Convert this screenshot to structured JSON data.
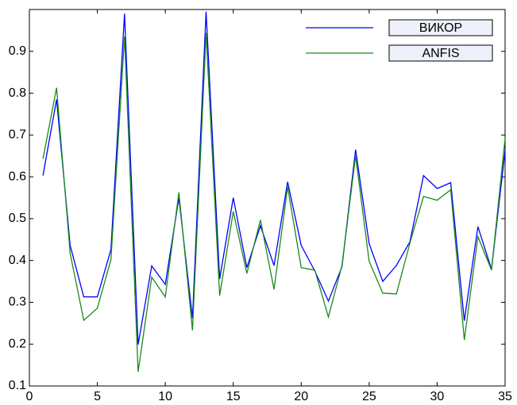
{
  "chart_data": {
    "type": "line",
    "x": [
      1,
      2,
      3,
      4,
      5,
      6,
      7,
      8,
      9,
      10,
      11,
      12,
      13,
      14,
      15,
      16,
      17,
      18,
      19,
      20,
      21,
      22,
      23,
      24,
      25,
      26,
      27,
      28,
      29,
      30,
      31,
      32,
      33,
      34,
      35
    ],
    "series": [
      {
        "name": "ВИКОР",
        "color": "#0000ff",
        "values": [
          0.603,
          0.785,
          0.436,
          0.313,
          0.313,
          0.426,
          0.99,
          0.199,
          0.387,
          0.343,
          0.55,
          0.262,
          0.995,
          0.356,
          0.55,
          0.383,
          0.483,
          0.388,
          0.588,
          0.436,
          0.375,
          0.303,
          0.385,
          0.665,
          0.44,
          0.35,
          0.388,
          0.445,
          0.603,
          0.572,
          0.586,
          0.256,
          0.481,
          0.379,
          0.663
        ]
      },
      {
        "name": "ANFIS",
        "color": "#1a8a1a",
        "values": [
          0.643,
          0.813,
          0.417,
          0.257,
          0.286,
          0.402,
          0.935,
          0.134,
          0.36,
          0.313,
          0.563,
          0.233,
          0.944,
          0.316,
          0.517,
          0.369,
          0.497,
          0.331,
          0.576,
          0.383,
          0.377,
          0.265,
          0.388,
          0.65,
          0.398,
          0.322,
          0.32,
          0.442,
          0.553,
          0.544,
          0.569,
          0.21,
          0.457,
          0.377,
          0.692
        ]
      }
    ],
    "xlim": [
      0,
      35
    ],
    "xticks": [
      0,
      5,
      10,
      15,
      20,
      25,
      30,
      35
    ],
    "ylim": [
      0.1,
      1.0
    ],
    "yticks": [
      0.1,
      0.2,
      0.3,
      0.4,
      0.5,
      0.6,
      0.7,
      0.8,
      0.9
    ],
    "legend": "upper right"
  }
}
